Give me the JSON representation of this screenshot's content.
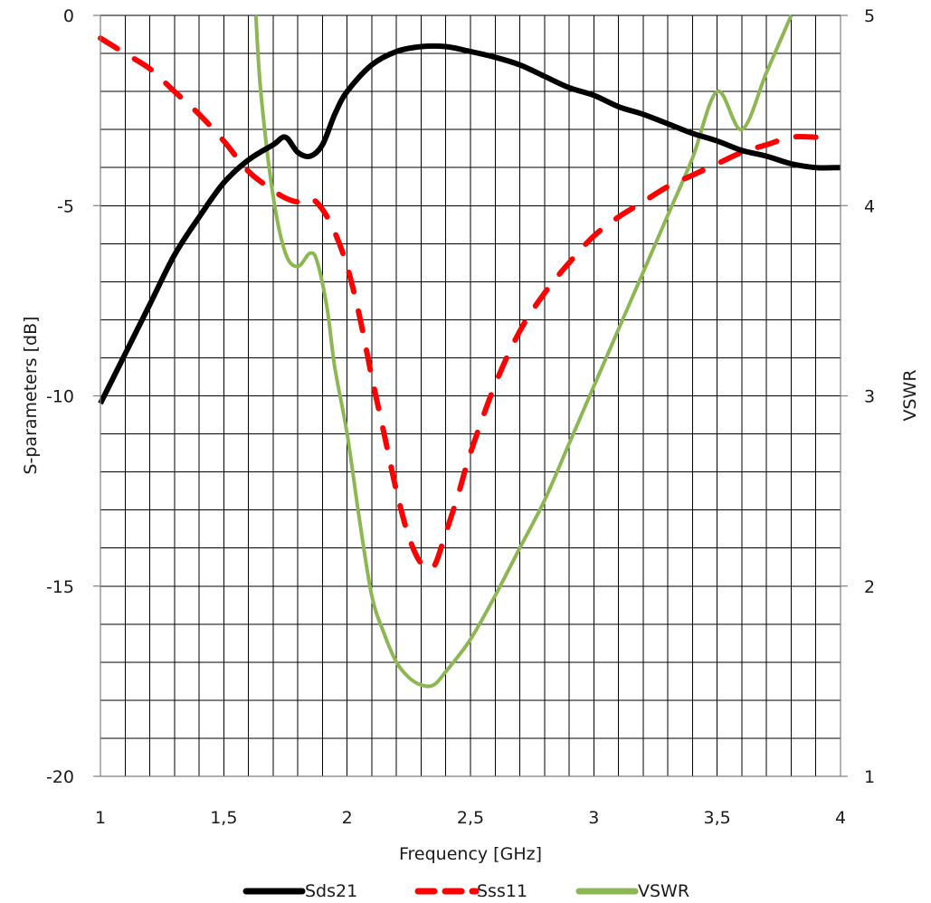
{
  "chart_data": {
    "type": "line",
    "title": "",
    "xlabel": "Frequency [GHz]",
    "ylabel": "S-parameters [dB]",
    "y2label": "VSWR",
    "xlim": [
      1,
      4
    ],
    "ylim": [
      -20,
      0
    ],
    "y2lim": [
      1,
      5
    ],
    "x_ticks": [
      "1",
      "1,5",
      "2",
      "2,5",
      "3",
      "3,5",
      "4"
    ],
    "y_ticks": [
      "0",
      "-5",
      "-10",
      "-15",
      "-20"
    ],
    "y2_ticks": [
      "5",
      "4",
      "3",
      "2",
      "1"
    ],
    "grid": true,
    "legend_position": "bottom",
    "series": [
      {
        "name": "Sds21",
        "axis": "left",
        "color": "#000000",
        "style": "solid",
        "points": [
          [
            1.0,
            -10.2
          ],
          [
            1.1,
            -8.9
          ],
          [
            1.2,
            -7.6
          ],
          [
            1.3,
            -6.3
          ],
          [
            1.4,
            -5.3
          ],
          [
            1.5,
            -4.4
          ],
          [
            1.6,
            -3.8
          ],
          [
            1.7,
            -3.4
          ],
          [
            1.75,
            -3.2
          ],
          [
            1.8,
            -3.6
          ],
          [
            1.85,
            -3.7
          ],
          [
            1.9,
            -3.4
          ],
          [
            1.95,
            -2.6
          ],
          [
            2.0,
            -2.0
          ],
          [
            2.1,
            -1.3
          ],
          [
            2.2,
            -0.95
          ],
          [
            2.3,
            -0.82
          ],
          [
            2.4,
            -0.82
          ],
          [
            2.5,
            -0.95
          ],
          [
            2.6,
            -1.1
          ],
          [
            2.7,
            -1.3
          ],
          [
            2.8,
            -1.6
          ],
          [
            2.9,
            -1.9
          ],
          [
            3.0,
            -2.1
          ],
          [
            3.1,
            -2.4
          ],
          [
            3.2,
            -2.6
          ],
          [
            3.3,
            -2.85
          ],
          [
            3.4,
            -3.1
          ],
          [
            3.5,
            -3.3
          ],
          [
            3.6,
            -3.55
          ],
          [
            3.7,
            -3.7
          ],
          [
            3.8,
            -3.9
          ],
          [
            3.9,
            -4.0
          ],
          [
            4.0,
            -4.0
          ]
        ]
      },
      {
        "name": "Sss11",
        "axis": "left",
        "color": "#ff0000",
        "style": "dashed",
        "points": [
          [
            1.0,
            -0.6
          ],
          [
            1.1,
            -1.0
          ],
          [
            1.2,
            -1.4
          ],
          [
            1.3,
            -2.0
          ],
          [
            1.4,
            -2.6
          ],
          [
            1.5,
            -3.3
          ],
          [
            1.6,
            -4.1
          ],
          [
            1.7,
            -4.6
          ],
          [
            1.75,
            -4.8
          ],
          [
            1.8,
            -4.9
          ],
          [
            1.85,
            -4.8
          ],
          [
            1.9,
            -5.1
          ],
          [
            1.95,
            -5.7
          ],
          [
            2.0,
            -6.6
          ],
          [
            2.05,
            -7.9
          ],
          [
            2.1,
            -9.5
          ],
          [
            2.15,
            -11.0
          ],
          [
            2.2,
            -12.5
          ],
          [
            2.25,
            -13.7
          ],
          [
            2.3,
            -14.4
          ],
          [
            2.35,
            -14.5
          ],
          [
            2.4,
            -13.6
          ],
          [
            2.45,
            -12.6
          ],
          [
            2.5,
            -11.5
          ],
          [
            2.6,
            -9.7
          ],
          [
            2.7,
            -8.3
          ],
          [
            2.8,
            -7.3
          ],
          [
            2.9,
            -6.5
          ],
          [
            3.0,
            -5.8
          ],
          [
            3.1,
            -5.3
          ],
          [
            3.2,
            -4.9
          ],
          [
            3.3,
            -4.5
          ],
          [
            3.4,
            -4.2
          ],
          [
            3.5,
            -3.9
          ],
          [
            3.6,
            -3.6
          ],
          [
            3.7,
            -3.4
          ],
          [
            3.8,
            -3.2
          ],
          [
            3.9,
            -3.2
          ]
        ]
      },
      {
        "name": "VSWR",
        "axis": "right",
        "color": "#8db753",
        "style": "solid",
        "points": [
          [
            1.63,
            5.0
          ],
          [
            1.65,
            4.6
          ],
          [
            1.7,
            4.05
          ],
          [
            1.75,
            3.75
          ],
          [
            1.8,
            3.68
          ],
          [
            1.85,
            3.75
          ],
          [
            1.88,
            3.7
          ],
          [
            1.92,
            3.45
          ],
          [
            1.95,
            3.15
          ],
          [
            2.0,
            2.8
          ],
          [
            2.05,
            2.35
          ],
          [
            2.1,
            1.95
          ],
          [
            2.15,
            1.75
          ],
          [
            2.2,
            1.6
          ],
          [
            2.25,
            1.52
          ],
          [
            2.3,
            1.48
          ],
          [
            2.35,
            1.48
          ],
          [
            2.4,
            1.55
          ],
          [
            2.5,
            1.72
          ],
          [
            2.6,
            1.95
          ],
          [
            2.7,
            2.2
          ],
          [
            2.8,
            2.45
          ],
          [
            2.9,
            2.75
          ],
          [
            3.0,
            3.05
          ],
          [
            3.1,
            3.35
          ],
          [
            3.2,
            3.65
          ],
          [
            3.3,
            3.95
          ],
          [
            3.4,
            4.25
          ],
          [
            3.5,
            4.6
          ],
          [
            3.6,
            4.4
          ],
          [
            3.7,
            4.7
          ],
          [
            3.8,
            5.0
          ]
        ]
      }
    ]
  }
}
